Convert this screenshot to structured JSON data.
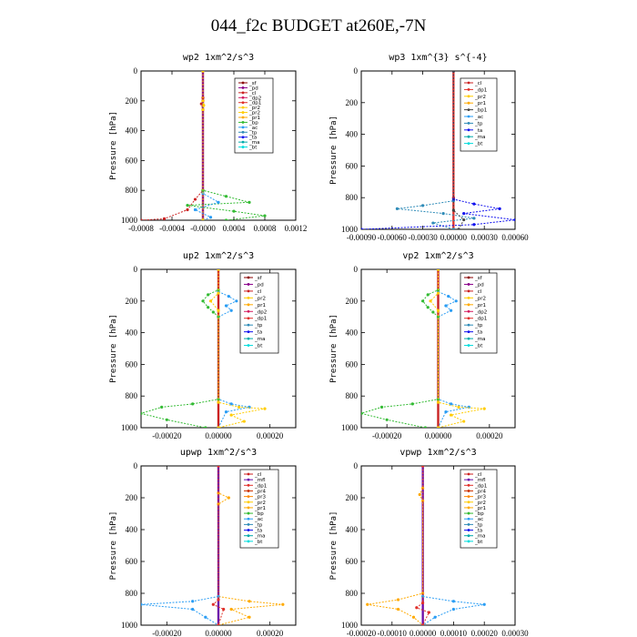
{
  "page_title": "044_f2c  BUDGET at260E,-7N",
  "colors": {
    "_sf": "#8b0000",
    "_pd": "#8b008b",
    "_cl": "#cc2222",
    "_dp2": "#d41c60",
    "_dp1": "#e0302a",
    "_pr2": "#ffcc00",
    "_pr1": "#ffaa00",
    "_bp": "#33bb33",
    "_ac": "#2a9df4",
    "_tp": "#2e8bb8",
    "_ta": "#1010ee",
    "_ma": "#00aaaa",
    "_bt": "#00dddd",
    "_mfl": "#6a0dad",
    "_pr4": "#cc3300",
    "_pr3": "#ff8800",
    "_dp4": "#993366"
  },
  "chart_data": [
    {
      "type": "line",
      "title": "wp2   1xm^2/s^3",
      "ylabel": "Pressure [hPa]",
      "ylim": [
        1000,
        0
      ],
      "xlim": [
        -0.0008,
        0.0012
      ],
      "x_ticks": [
        "-0.0008",
        "-0.0004",
        "-0.0000",
        "0.0004",
        "0.0008",
        "0.0012"
      ],
      "y_ticks": [
        "0",
        "200",
        "400",
        "600",
        "800",
        "1000"
      ],
      "legend": [
        "_sf",
        "_pd",
        "_cl",
        "_dp2",
        "_dp1",
        "_pr2",
        "_pr2",
        "_pr1",
        "_bp",
        "_ac",
        "_tp",
        "_ta",
        "_ma",
        "_bt"
      ],
      "series": [
        {
          "name": "_sf",
          "points": [
            [
              0,
              0
            ],
            [
              0,
              200
            ],
            [
              0,
              800
            ],
            [
              0,
              1000
            ]
          ]
        },
        {
          "name": "_pd",
          "points": [
            [
              0,
              0
            ],
            [
              0,
              200
            ],
            [
              0,
              800
            ],
            [
              0,
              1000
            ]
          ]
        },
        {
          "name": "_cl",
          "points": [
            [
              0,
              0
            ],
            [
              0,
              180
            ],
            [
              -2e-05,
              220
            ],
            [
              0,
              260
            ],
            [
              0,
              800
            ],
            [
              -0.0001,
              860
            ],
            [
              -0.0002,
              930
            ],
            [
              -0.0005,
              990
            ],
            [
              -0.0008,
              1000
            ]
          ]
        },
        {
          "name": "_bp",
          "points": [
            [
              0,
              0
            ],
            [
              0,
              800
            ],
            [
              0.0003,
              840
            ],
            [
              0.0006,
              880
            ],
            [
              -0.0002,
              900
            ],
            [
              0.0004,
              940
            ],
            [
              0.0008,
              970
            ],
            [
              0.0003,
              1000
            ]
          ]
        },
        {
          "name": "_ac",
          "points": [
            [
              0,
              0
            ],
            [
              0,
              820
            ],
            [
              0.0002,
              880
            ],
            [
              -0.0001,
              930
            ],
            [
              0.0001,
              980
            ],
            [
              0,
              1000
            ]
          ]
        },
        {
          "name": "_pr2",
          "points": [
            [
              0,
              0
            ],
            [
              0,
              200
            ],
            [
              1e-05,
              230
            ],
            [
              0,
              260
            ],
            [
              0,
              1000
            ]
          ]
        }
      ]
    },
    {
      "type": "line",
      "title": "wp3   1xm^{3} s^{-4}",
      "ylabel": "Pressure [hPa]",
      "ylim": [
        1000,
        0
      ],
      "xlim": [
        -0.0009,
        0.0006
      ],
      "x_ticks": [
        "-0.00090",
        "-0.00060",
        "-0.00030",
        "0.00000",
        "0.00030",
        "0.00060"
      ],
      "y_ticks": [
        "0",
        "200",
        "400",
        "600",
        "800",
        "1000"
      ],
      "legend": [
        "_cl",
        "_dp1",
        "_pr2",
        "_pr1",
        "_bp1",
        "_ac",
        "_tp",
        "_ta",
        "_ma",
        "_bt"
      ],
      "series": [
        {
          "name": "_cl",
          "points": [
            [
              0,
              0
            ],
            [
              0,
              800
            ],
            [
              0,
              1000
            ]
          ]
        },
        {
          "name": "_dp1",
          "points": [
            [
              0,
              0
            ],
            [
              0,
              800
            ],
            [
              0,
              1000
            ]
          ]
        },
        {
          "name": "_tp",
          "points": [
            [
              0,
              0
            ],
            [
              0,
              820
            ],
            [
              -0.0003,
              850
            ],
            [
              -0.00055,
              870
            ],
            [
              -0.0001,
              900
            ],
            [
              0.0002,
              930
            ],
            [
              -0.0002,
              960
            ],
            [
              0,
              1000
            ]
          ]
        },
        {
          "name": "_ta",
          "points": [
            [
              0,
              0
            ],
            [
              0,
              810
            ],
            [
              0.0002,
              840
            ],
            [
              0.00045,
              870
            ],
            [
              0.0001,
              900
            ],
            [
              0.0006,
              940
            ],
            [
              0.0002,
              970
            ],
            [
              -0.0009,
              1000
            ]
          ]
        },
        {
          "name": "_bp1",
          "points": [
            [
              0,
              0
            ],
            [
              0,
              880
            ],
            [
              0.0001,
              940
            ],
            [
              5e-05,
              1000
            ]
          ]
        }
      ]
    },
    {
      "type": "line",
      "title": "up2   1xm^2/s^3",
      "ylabel": "Pressure [hPa]",
      "ylim": [
        1000,
        0
      ],
      "xlim": [
        -0.0003,
        0.0003
      ],
      "x_ticks": [
        "-0.00020",
        "0.00000",
        "0.00020"
      ],
      "y_ticks": [
        "0",
        "200",
        "400",
        "600",
        "800",
        "1000"
      ],
      "legend": [
        "_sf",
        "_pd",
        "_cl",
        "_pr2",
        "_pr1",
        "_dp2",
        "_dp1",
        "_tp",
        "_ta",
        "_ma",
        "_bt"
      ],
      "series": [
        {
          "name": "_sf",
          "points": [
            [
              0,
              0
            ],
            [
              0,
              1000
            ]
          ]
        },
        {
          "name": "_cl",
          "points": [
            [
              0,
              0
            ],
            [
              0,
              1000
            ]
          ]
        },
        {
          "name": "_ac",
          "points": [
            [
              0,
              0
            ],
            [
              0,
              140
            ],
            [
              4e-05,
              170
            ],
            [
              7e-05,
              200
            ],
            [
              3e-05,
              230
            ],
            [
              5e-05,
              260
            ],
            [
              0,
              300
            ],
            [
              0,
              820
            ],
            [
              5e-05,
              850
            ],
            [
              0.00012,
              870
            ],
            [
              3e-05,
              900
            ],
            [
              0,
              1000
            ]
          ]
        },
        {
          "name": "_bp",
          "points": [
            [
              0,
              0
            ],
            [
              0,
              130
            ],
            [
              -4e-05,
              160
            ],
            [
              -6e-05,
              200
            ],
            [
              -4e-05,
              240
            ],
            [
              -2e-05,
              270
            ],
            [
              0,
              300
            ],
            [
              0,
              820
            ],
            [
              -0.0001,
              850
            ],
            [
              -0.00022,
              870
            ],
            [
              -0.0003,
              910
            ],
            [
              -0.0002,
              950
            ],
            [
              -5e-05,
              1000
            ]
          ]
        },
        {
          "name": "_pr2",
          "points": [
            [
              0,
              0
            ],
            [
              0,
              150
            ],
            [
              -3e-05,
              200
            ],
            [
              0,
              260
            ],
            [
              0,
              840
            ],
            [
              8e-05,
              870
            ],
            [
              0.00018,
              880
            ],
            [
              5e-05,
              920
            ],
            [
              0.0001,
              960
            ],
            [
              0,
              1000
            ]
          ]
        }
      ]
    },
    {
      "type": "line",
      "title": "vp2   1xm^2/s^3",
      "ylabel": "Pressure [hPa]",
      "ylim": [
        1000,
        0
      ],
      "xlim": [
        -0.0003,
        0.0003
      ],
      "x_ticks": [
        "-0.00020",
        "0.00000",
        "0.00020"
      ],
      "y_ticks": [
        "0",
        "200",
        "400",
        "600",
        "800",
        "1000"
      ],
      "legend": [
        "_sf",
        "_pd",
        "_cl",
        "_pr2",
        "_pr1",
        "_dp2",
        "_dp1",
        "_tp",
        "_ta",
        "_ma",
        "_bt"
      ],
      "series": [
        {
          "name": "_sf",
          "points": [
            [
              0,
              0
            ],
            [
              0,
              1000
            ]
          ]
        },
        {
          "name": "_cl",
          "points": [
            [
              0,
              0
            ],
            [
              0,
              1000
            ]
          ]
        },
        {
          "name": "_ac",
          "points": [
            [
              0,
              0
            ],
            [
              0,
              140
            ],
            [
              4e-05,
              170
            ],
            [
              7e-05,
              200
            ],
            [
              3e-05,
              230
            ],
            [
              5e-05,
              260
            ],
            [
              0,
              300
            ],
            [
              0,
              820
            ],
            [
              5e-05,
              850
            ],
            [
              0.00012,
              870
            ],
            [
              3e-05,
              900
            ],
            [
              0,
              1000
            ]
          ]
        },
        {
          "name": "_bp",
          "points": [
            [
              0,
              0
            ],
            [
              0,
              130
            ],
            [
              -4e-05,
              160
            ],
            [
              -6e-05,
              200
            ],
            [
              -4e-05,
              240
            ],
            [
              -2e-05,
              270
            ],
            [
              0,
              300
            ],
            [
              0,
              820
            ],
            [
              -0.0001,
              850
            ],
            [
              -0.00022,
              870
            ],
            [
              -0.0003,
              910
            ],
            [
              -0.0002,
              950
            ],
            [
              -5e-05,
              1000
            ]
          ]
        },
        {
          "name": "_pr2",
          "points": [
            [
              0,
              0
            ],
            [
              0,
              150
            ],
            [
              -3e-05,
              200
            ],
            [
              0,
              260
            ],
            [
              0,
              840
            ],
            [
              8e-05,
              870
            ],
            [
              0.00018,
              880
            ],
            [
              5e-05,
              920
            ],
            [
              0.0001,
              960
            ],
            [
              0,
              1000
            ]
          ]
        }
      ]
    },
    {
      "type": "line",
      "title": "upwp   1xm^2/s^3",
      "ylabel": "Pressure [hPa]",
      "ylim": [
        1000,
        0
      ],
      "xlim": [
        -0.0003,
        0.0003
      ],
      "x_ticks": [
        "-0.00020",
        "0.00000",
        "0.00020"
      ],
      "y_ticks": [
        "0",
        "200",
        "400",
        "600",
        "800",
        "1000"
      ],
      "legend": [
        "_cl",
        "_mfl",
        "_dp1",
        "_pr4",
        "_pr3",
        "_pr2",
        "_pr1",
        "_bp",
        "_ac",
        "_tp",
        "_ta",
        "_ma",
        "_bt"
      ],
      "series": [
        {
          "name": "_cl",
          "points": [
            [
              0,
              0
            ],
            [
              0,
              1000
            ]
          ]
        },
        {
          "name": "_mfl",
          "points": [
            [
              0,
              0
            ],
            [
              0,
              1000
            ]
          ]
        },
        {
          "name": "_pr1",
          "points": [
            [
              0,
              0
            ],
            [
              0,
              170
            ],
            [
              4e-05,
              200
            ],
            [
              0,
              240
            ],
            [
              0,
              820
            ],
            [
              0.00012,
              850
            ],
            [
              0.00025,
              870
            ],
            [
              5e-05,
              900
            ],
            [
              0.00012,
              950
            ],
            [
              0,
              1000
            ]
          ]
        },
        {
          "name": "_ac",
          "points": [
            [
              0,
              0
            ],
            [
              0,
              820
            ],
            [
              -0.0001,
              850
            ],
            [
              -0.0003,
              870
            ],
            [
              -0.0001,
              900
            ],
            [
              -5e-05,
              950
            ],
            [
              0,
              1000
            ]
          ]
        },
        {
          "name": "_dp1",
          "points": [
            [
              0,
              0
            ],
            [
              0,
              840
            ],
            [
              -2e-05,
              870
            ],
            [
              2e-05,
              900
            ],
            [
              0,
              1000
            ]
          ]
        }
      ]
    },
    {
      "type": "line",
      "title": "vpwp   1xm^2/s^3",
      "ylabel": "Pressure [hPa]",
      "ylim": [
        1000,
        0
      ],
      "xlim": [
        -0.0002,
        0.0003
      ],
      "x_ticks": [
        "-0.00020",
        "-0.00010",
        "0.00000",
        "0.00010",
        "0.00020",
        "0.00030"
      ],
      "y_ticks": [
        "0",
        "200",
        "400",
        "600",
        "800",
        "1000"
      ],
      "legend": [
        "_cl",
        "_mfl",
        "_dp1",
        "_pr4",
        "_pr3",
        "_pr2",
        "_pr1",
        "_bp",
        "_ac",
        "_tp",
        "_ta",
        "_ma",
        "_bt"
      ],
      "series": [
        {
          "name": "_cl",
          "points": [
            [
              0,
              0
            ],
            [
              0,
              1000
            ]
          ]
        },
        {
          "name": "_mfl",
          "points": [
            [
              0,
              0
            ],
            [
              0,
              1000
            ]
          ]
        },
        {
          "name": "_pr1",
          "points": [
            [
              0,
              0
            ],
            [
              0,
              140
            ],
            [
              -1e-05,
              180
            ],
            [
              0,
              220
            ],
            [
              0,
              800
            ],
            [
              -8e-05,
              840
            ],
            [
              -0.00018,
              870
            ],
            [
              -8e-05,
              900
            ],
            [
              -3e-05,
              950
            ],
            [
              0,
              1000
            ]
          ]
        },
        {
          "name": "_ac",
          "points": [
            [
              0,
              0
            ],
            [
              0,
              820
            ],
            [
              0.0001,
              850
            ],
            [
              0.0002,
              870
            ],
            [
              0.0001,
              900
            ],
            [
              4e-05,
              950
            ],
            [
              0,
              1000
            ]
          ]
        },
        {
          "name": "_dp1",
          "points": [
            [
              0,
              0
            ],
            [
              0,
              860
            ],
            [
              -2e-05,
              890
            ],
            [
              2e-05,
              920
            ],
            [
              0,
              1000
            ]
          ]
        }
      ]
    }
  ]
}
